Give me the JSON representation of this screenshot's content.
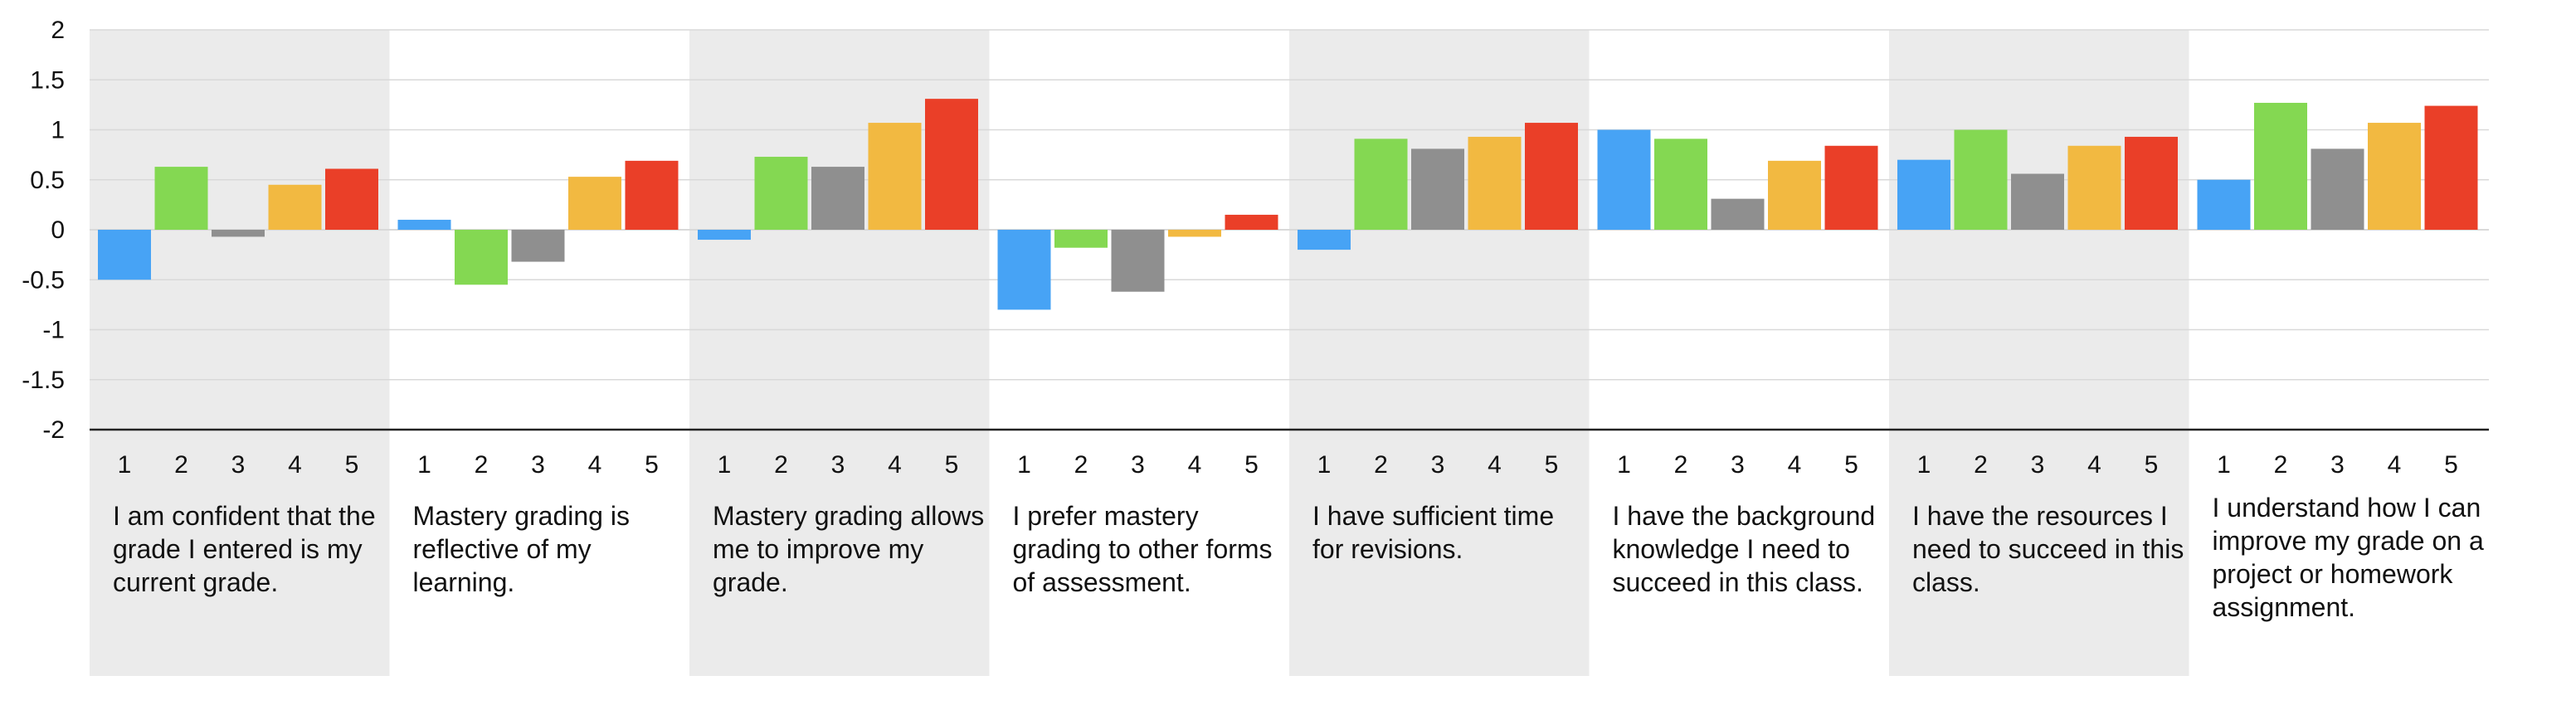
{
  "chart_data": {
    "type": "bar",
    "title": "",
    "xlabel": "",
    "ylabel": "",
    "ylim": [
      -2,
      2
    ],
    "yticks": [
      "2",
      "1.5",
      "1",
      "0.5",
      "0",
      "-0.5",
      "-1",
      "-1.5",
      "-2"
    ],
    "ytick_values": [
      2,
      1.5,
      1,
      0.5,
      0,
      -0.5,
      -1,
      -1.5,
      -2
    ],
    "grid": true,
    "legend": "none",
    "colors": {
      "1": "#47a3f5",
      "2": "#84d852",
      "3": "#8f8f8f",
      "4": "#f2b941",
      "5": "#ea3f28",
      "band": "#ebebeb",
      "grid": "#d9d9d9",
      "axis": "#222222"
    },
    "sub_labels": [
      "1",
      "2",
      "3",
      "4",
      "5"
    ],
    "groups": [
      {
        "label": "I am confident that the grade I entered is my current grade.",
        "shaded": true,
        "values": [
          -0.5,
          0.63,
          -0.07,
          0.45,
          0.61
        ]
      },
      {
        "label": "Mastery grading is reflective of my learning.",
        "shaded": false,
        "values": [
          0.1,
          -0.55,
          -0.32,
          0.53,
          0.69
        ]
      },
      {
        "label": "Mastery grading allows me to improve my grade.",
        "shaded": true,
        "values": [
          -0.1,
          0.73,
          0.63,
          1.07,
          1.31
        ]
      },
      {
        "label": "I prefer mastery grading to other forms of assessment.",
        "shaded": false,
        "values": [
          -0.8,
          -0.18,
          -0.62,
          -0.07,
          0.15
        ]
      },
      {
        "label": "I have sufficient time for revisions.",
        "shaded": true,
        "values": [
          -0.2,
          0.91,
          0.81,
          0.93,
          1.07
        ]
      },
      {
        "label": "I have the background knowledge I need to succeed in this class.",
        "shaded": false,
        "values": [
          1.0,
          0.91,
          0.31,
          0.69,
          0.84
        ]
      },
      {
        "label": "I have the resources I need to succeed in this class.",
        "shaded": true,
        "values": [
          0.7,
          1.0,
          0.56,
          0.84,
          0.93
        ]
      },
      {
        "label": "I understand how I can improve my grade on a project or homework assignment.",
        "shaded": false,
        "values": [
          0.5,
          1.27,
          0.81,
          1.07,
          1.24
        ]
      }
    ]
  }
}
